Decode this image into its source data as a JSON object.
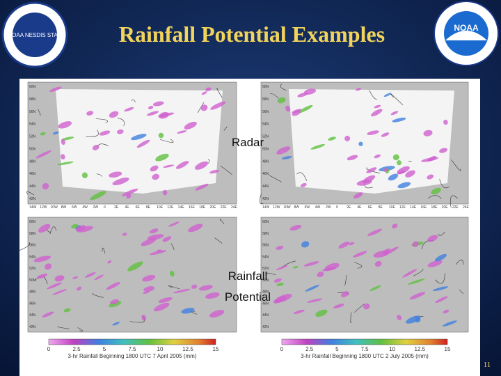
{
  "header": {
    "title": "Rainfall  Potential Examples",
    "left_logo": "NOAA NESDIS STAR",
    "right_logo": "NOAA"
  },
  "panels": {
    "top_label": "Radar",
    "bottom_label_lines": [
      "Rainfall",
      "Potential"
    ]
  },
  "maps": {
    "lat_labels": [
      "60N",
      "58N",
      "56N",
      "54N",
      "52N",
      "50N",
      "48N",
      "46N",
      "44N",
      "42N"
    ],
    "lon_labels": [
      "14W",
      "12W",
      "10W",
      "8W",
      "6W",
      "4W",
      "2W",
      "0",
      "2E",
      "4E",
      "6E",
      "8E",
      "10E",
      "12E",
      "14E",
      "16E",
      "18E",
      "20E",
      "22E",
      "24E"
    ]
  },
  "colorbar": {
    "ticks": [
      "0",
      "2.5",
      "5",
      "7.5",
      "10",
      "12.5",
      "15"
    ],
    "captions": [
      "3-hr Rainfall Beginning 1800 UTC 7 April 2005 (mm)",
      "3-hr Rainfall Beginning 1800 UTC 2 July 2005 (mm)"
    ]
  },
  "footer": {
    "page_number": "11"
  }
}
